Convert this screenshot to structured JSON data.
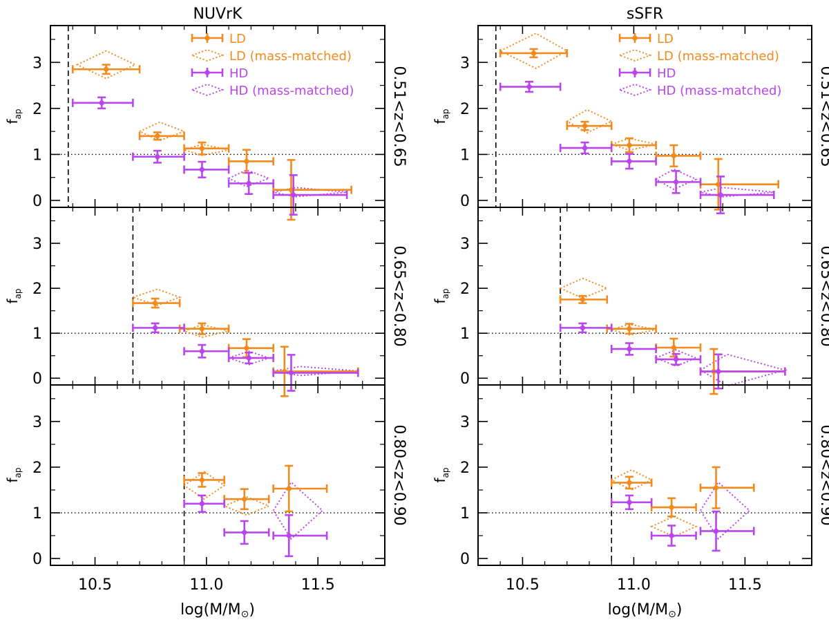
{
  "chart_data": {
    "type": "scatter",
    "colors": {
      "LD": "#f28a1e",
      "HD": "#b946ec",
      "axis": "#000000"
    },
    "legend": {
      "placement": "top-right",
      "entries": [
        "LD",
        "LD (mass-matched)",
        "HD",
        "HD (mass-matched)"
      ]
    },
    "xlabel_main": "log(M/M",
    "xlabel_sub": "⊙",
    "xlabel_close": ")",
    "ylabel_main": "f",
    "ylabel_sub": "ap",
    "xlim": [
      10.3,
      11.8
    ],
    "ylim": [
      -0.15,
      3.8
    ],
    "xticks": [
      10.5,
      11.0,
      11.5
    ],
    "xtick_labels": [
      "10.5",
      "11.0",
      "11.5"
    ],
    "yticks": [
      0,
      1,
      2,
      3
    ],
    "ytick_labels": [
      "0",
      "1",
      "2",
      "3"
    ],
    "reference_line_y": 1,
    "columns": [
      {
        "title": "NUVrK"
      },
      {
        "title": "sSFR"
      }
    ],
    "rows": [
      {
        "label": "0.51<z<0.65",
        "mass_limit": 10.38
      },
      {
        "label": "0.65<z<0.80",
        "mass_limit": 10.67
      },
      {
        "label": "0.80<z<0.90",
        "mass_limit": 10.9
      }
    ],
    "panels": [
      {
        "column": 0,
        "row": 0,
        "LD": [
          {
            "x": 10.55,
            "xlo": 10.4,
            "xhi": 10.7,
            "y": 2.85,
            "yerr": 0.1
          },
          {
            "x": 10.78,
            "xlo": 10.7,
            "xhi": 10.9,
            "y": 1.4,
            "yerr": 0.08
          },
          {
            "x": 10.98,
            "xlo": 10.9,
            "xhi": 11.1,
            "y": 1.13,
            "yerr": 0.13
          },
          {
            "x": 11.18,
            "xlo": 11.1,
            "xhi": 11.3,
            "y": 0.85,
            "yerr": 0.25
          },
          {
            "x": 11.38,
            "xlo": 11.3,
            "xhi": 11.65,
            "y": 0.23,
            "yerr": 0.65
          }
        ],
        "HD": [
          {
            "x": 10.53,
            "xlo": 10.4,
            "xhi": 10.67,
            "y": 2.12,
            "yerr": 0.12
          },
          {
            "x": 10.78,
            "xlo": 10.67,
            "xhi": 10.9,
            "y": 0.95,
            "yerr": 0.13
          },
          {
            "x": 10.98,
            "xlo": 10.9,
            "xhi": 11.1,
            "y": 0.67,
            "yerr": 0.17
          },
          {
            "x": 11.19,
            "xlo": 11.1,
            "xhi": 11.3,
            "y": 0.37,
            "yerr": 0.23
          },
          {
            "x": 11.39,
            "xlo": 11.3,
            "xhi": 11.63,
            "y": 0.12,
            "yerr": 0.43
          }
        ],
        "LD_mm": [
          {
            "x": 10.55,
            "xlo": 10.42,
            "xhi": 10.68,
            "yc": 2.95,
            "hw": 0.3
          },
          {
            "x": 10.79,
            "xlo": 10.7,
            "xhi": 10.9,
            "yc": 1.5,
            "hw": 0.2
          },
          {
            "x": 10.98,
            "xlo": 10.9,
            "xhi": 11.1,
            "yc": 1.1,
            "hw": 0.12
          }
        ],
        "HD_mm": [
          {
            "x": 11.18,
            "xlo": 11.1,
            "xhi": 11.28,
            "yc": 0.48,
            "hw": 0.18
          },
          {
            "x": 11.4,
            "xlo": 11.3,
            "xhi": 11.63,
            "yc": 0.18,
            "hw": 0.1
          }
        ]
      },
      {
        "column": 1,
        "row": 0,
        "LD": [
          {
            "x": 10.55,
            "xlo": 10.4,
            "xhi": 10.7,
            "y": 3.2,
            "yerr": 0.09
          },
          {
            "x": 10.78,
            "xlo": 10.7,
            "xhi": 10.9,
            "y": 1.62,
            "yerr": 0.09
          },
          {
            "x": 10.98,
            "xlo": 10.9,
            "xhi": 11.1,
            "y": 1.2,
            "yerr": 0.15
          },
          {
            "x": 11.18,
            "xlo": 11.1,
            "xhi": 11.3,
            "y": 0.97,
            "yerr": 0.23
          },
          {
            "x": 11.38,
            "xlo": 11.3,
            "xhi": 11.65,
            "y": 0.35,
            "yerr": 0.55
          }
        ],
        "HD": [
          {
            "x": 10.53,
            "xlo": 10.4,
            "xhi": 10.67,
            "y": 2.47,
            "yerr": 0.11
          },
          {
            "x": 10.78,
            "xlo": 10.67,
            "xhi": 10.9,
            "y": 1.14,
            "yerr": 0.12
          },
          {
            "x": 10.98,
            "xlo": 10.9,
            "xhi": 11.1,
            "y": 0.85,
            "yerr": 0.16
          },
          {
            "x": 11.19,
            "xlo": 11.1,
            "xhi": 11.3,
            "y": 0.4,
            "yerr": 0.24
          },
          {
            "x": 11.39,
            "xlo": 11.3,
            "xhi": 11.63,
            "y": 0.12,
            "yerr": 0.4
          }
        ],
        "LD_mm": [
          {
            "x": 10.56,
            "xlo": 10.4,
            "xhi": 10.7,
            "yc": 3.25,
            "hw": 0.38
          },
          {
            "x": 10.79,
            "xlo": 10.7,
            "xhi": 10.9,
            "yc": 1.72,
            "hw": 0.25
          },
          {
            "x": 10.98,
            "xlo": 10.9,
            "xhi": 11.1,
            "yc": 1.22,
            "hw": 0.13
          }
        ],
        "HD_mm": [
          {
            "x": 11.18,
            "xlo": 11.1,
            "xhi": 11.28,
            "yc": 0.46,
            "hw": 0.22
          },
          {
            "x": 11.4,
            "xlo": 11.3,
            "xhi": 11.63,
            "yc": 0.18,
            "hw": 0.1
          }
        ]
      },
      {
        "column": 0,
        "row": 1,
        "LD": [
          {
            "x": 10.77,
            "xlo": 10.67,
            "xhi": 10.88,
            "y": 1.67,
            "yerr": 0.1
          },
          {
            "x": 10.98,
            "xlo": 10.88,
            "xhi": 11.1,
            "y": 1.1,
            "yerr": 0.12
          },
          {
            "x": 11.18,
            "xlo": 11.1,
            "xhi": 11.3,
            "y": 0.67,
            "yerr": 0.2
          },
          {
            "x": 11.35,
            "xlo": 11.3,
            "xhi": 11.68,
            "y": 0.15,
            "yerr": 0.55
          }
        ],
        "HD": [
          {
            "x": 10.77,
            "xlo": 10.67,
            "xhi": 10.9,
            "y": 1.12,
            "yerr": 0.1
          },
          {
            "x": 10.98,
            "xlo": 10.9,
            "xhi": 11.1,
            "y": 0.6,
            "yerr": 0.14
          },
          {
            "x": 11.19,
            "xlo": 11.1,
            "xhi": 11.3,
            "y": 0.45,
            "yerr": 0.12
          },
          {
            "x": 11.38,
            "xlo": 11.3,
            "xhi": 11.68,
            "y": 0.12,
            "yerr": 0.4
          }
        ],
        "LD_mm": [
          {
            "x": 10.78,
            "xlo": 10.67,
            "xhi": 10.88,
            "yc": 1.8,
            "hw": 0.18
          },
          {
            "x": 10.98,
            "xlo": 10.9,
            "xhi": 11.1,
            "yc": 1.05,
            "hw": 0.14
          }
        ],
        "HD_mm": [
          {
            "x": 11.19,
            "xlo": 11.1,
            "xhi": 11.28,
            "yc": 0.45,
            "hw": 0.15
          },
          {
            "x": 11.42,
            "xlo": 11.3,
            "xhi": 11.68,
            "yc": 0.16,
            "hw": 0.1
          }
        ]
      },
      {
        "column": 1,
        "row": 1,
        "LD": [
          {
            "x": 10.77,
            "xlo": 10.67,
            "xhi": 10.88,
            "y": 1.75,
            "yerr": 0.08
          },
          {
            "x": 10.98,
            "xlo": 10.88,
            "xhi": 11.1,
            "y": 1.1,
            "yerr": 0.11
          },
          {
            "x": 11.18,
            "xlo": 11.1,
            "xhi": 11.3,
            "y": 0.68,
            "yerr": 0.2
          },
          {
            "x": 11.36,
            "xlo": 11.3,
            "xhi": 11.68,
            "y": 0.15,
            "yerr": 0.5
          }
        ],
        "HD": [
          {
            "x": 10.77,
            "xlo": 10.67,
            "xhi": 10.9,
            "y": 1.12,
            "yerr": 0.1
          },
          {
            "x": 10.98,
            "xlo": 10.9,
            "xhi": 11.1,
            "y": 0.65,
            "yerr": 0.13
          },
          {
            "x": 11.19,
            "xlo": 11.1,
            "xhi": 11.3,
            "y": 0.42,
            "yerr": 0.12
          },
          {
            "x": 11.38,
            "xlo": 11.3,
            "xhi": 11.68,
            "y": 0.15,
            "yerr": 0.38
          }
        ],
        "LD_mm": [
          {
            "x": 10.77,
            "xlo": 10.67,
            "xhi": 10.88,
            "yc": 2.0,
            "hw": 0.22
          },
          {
            "x": 10.98,
            "xlo": 10.9,
            "xhi": 11.1,
            "yc": 1.08,
            "hw": 0.12
          }
        ],
        "HD_mm": [
          {
            "x": 11.19,
            "xlo": 11.1,
            "xhi": 11.28,
            "yc": 0.45,
            "hw": 0.18
          },
          {
            "x": 11.42,
            "xlo": 11.3,
            "xhi": 11.68,
            "yc": 0.18,
            "hw": 0.35
          }
        ]
      },
      {
        "column": 0,
        "row": 2,
        "LD": [
          {
            "x": 10.98,
            "xlo": 10.9,
            "xhi": 11.08,
            "y": 1.72,
            "yerr": 0.15
          },
          {
            "x": 11.17,
            "xlo": 11.08,
            "xhi": 11.28,
            "y": 1.3,
            "yerr": 0.22
          },
          {
            "x": 11.37,
            "xlo": 11.3,
            "xhi": 11.54,
            "y": 1.53,
            "yerr": 0.5
          }
        ],
        "HD": [
          {
            "x": 10.98,
            "xlo": 10.9,
            "xhi": 11.08,
            "y": 1.2,
            "yerr": 0.18
          },
          {
            "x": 11.17,
            "xlo": 11.08,
            "xhi": 11.28,
            "y": 0.57,
            "yerr": 0.25
          },
          {
            "x": 11.37,
            "xlo": 11.3,
            "xhi": 11.54,
            "y": 0.5,
            "yerr": 0.45
          }
        ],
        "LD_mm": [
          {
            "x": 10.99,
            "xlo": 10.9,
            "xhi": 11.08,
            "yc": 1.6,
            "hw": 0.3
          },
          {
            "x": 11.18,
            "xlo": 11.08,
            "xhi": 11.28,
            "yc": 1.15,
            "hw": 0.2
          }
        ],
        "HD_mm": [
          {
            "x": 11.38,
            "xlo": 11.3,
            "xhi": 11.52,
            "yc": 1.05,
            "hw": 0.62
          }
        ]
      },
      {
        "column": 1,
        "row": 2,
        "LD": [
          {
            "x": 10.98,
            "xlo": 10.9,
            "xhi": 11.08,
            "y": 1.66,
            "yerr": 0.13
          },
          {
            "x": 11.17,
            "xlo": 11.08,
            "xhi": 11.28,
            "y": 1.12,
            "yerr": 0.2
          },
          {
            "x": 11.37,
            "xlo": 11.3,
            "xhi": 11.54,
            "y": 1.55,
            "yerr": 0.45
          }
        ],
        "HD": [
          {
            "x": 10.98,
            "xlo": 10.9,
            "xhi": 11.08,
            "y": 1.23,
            "yerr": 0.15
          },
          {
            "x": 11.17,
            "xlo": 11.08,
            "xhi": 11.28,
            "y": 0.5,
            "yerr": 0.22
          },
          {
            "x": 11.37,
            "xlo": 11.3,
            "xhi": 11.54,
            "y": 0.6,
            "yerr": 0.43
          }
        ],
        "LD_mm": [
          {
            "x": 10.99,
            "xlo": 10.9,
            "xhi": 11.08,
            "yc": 1.72,
            "hw": 0.22
          },
          {
            "x": 11.18,
            "xlo": 11.08,
            "xhi": 11.28,
            "yc": 0.7,
            "hw": 0.22
          }
        ],
        "HD_mm": [
          {
            "x": 11.38,
            "xlo": 11.3,
            "xhi": 11.52,
            "yc": 1.05,
            "hw": 0.62
          }
        ]
      }
    ]
  }
}
